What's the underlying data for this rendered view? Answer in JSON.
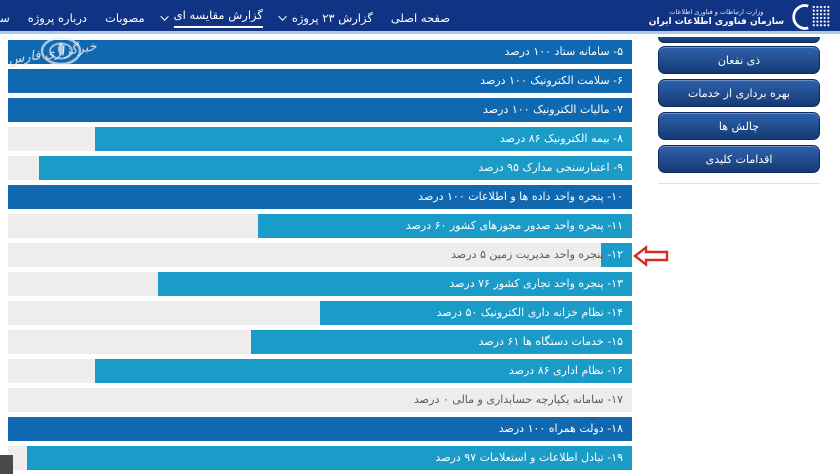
{
  "nav": {
    "items": [
      {
        "label": "صفحه اصلی",
        "caret": false,
        "active": false
      },
      {
        "label": "گزارش ۲۳ پروژه",
        "caret": true,
        "active": false
      },
      {
        "label": "گزارش مقایسه ای",
        "caret": true,
        "active": true
      },
      {
        "label": "مصوبات",
        "caret": false,
        "active": false
      },
      {
        "label": "درباره پروژه",
        "caret": false,
        "active": false
      },
      {
        "label": "سایر",
        "caret": false,
        "active": false
      }
    ],
    "logo": {
      "line1": "وزارت ارتباطات و فناوری اطلاعات",
      "line2": "سازمان فناوری اطلاعات ایران"
    }
  },
  "watermark": {
    "text": "خبرگزاری فارس"
  },
  "sidebar": {
    "buttons": [
      {
        "label": "ذی نفعان"
      },
      {
        "label": "بهره برداری از خدمات"
      },
      {
        "label": "چالش ها"
      },
      {
        "label": "اقدامات کلیدی"
      }
    ]
  },
  "chart_data": {
    "type": "bar",
    "orientation": "horizontal-rtl",
    "unit": "درصد",
    "xlim": [
      0,
      100
    ],
    "grid": false,
    "colors": {
      "bar_complete": "#0f68b0",
      "bar_partial": "#1b9cc8",
      "track": "#ededed",
      "arrow_red": "#d92b1e",
      "nav_bg": "#103384"
    },
    "rows": [
      {
        "label": "۵- سامانه ستاد ۱۰۰ درصد",
        "name": "سامانه ستاد",
        "value": 100,
        "color": "dark"
      },
      {
        "label": "۶- سلامت الکترونیک ۱۰۰ درصد",
        "name": "سلامت الکترونیک",
        "value": 100,
        "color": "dark"
      },
      {
        "label": "۷- مالیات الکترونیک ۱۰۰ درصد",
        "name": "مالیات الکترونیک",
        "value": 100,
        "color": "dark"
      },
      {
        "label": "۸- بیمه الکترونیک ۸۶ درصد",
        "name": "بیمه الکترونیک",
        "value": 86,
        "color": "light"
      },
      {
        "label": "۹- اعتبارسنجی مدارک ۹۵ درصد",
        "name": "اعتبارسنجی مدارک",
        "value": 95,
        "color": "light"
      },
      {
        "label": "۱۰- پنجره واحد داده ها و اطلاعات ۱۰۰ درصد",
        "name": "پنجره واحد داده ها و اطلاعات",
        "value": 100,
        "color": "dark"
      },
      {
        "label": "۱۱- پنجره واحد صدور مجوزهای کشور ۶۰ درصد",
        "name": "پنجره واحد صدور مجوزهای کشور",
        "value": 60,
        "color": "light"
      },
      {
        "label": "۱۲- پنجره واحد مدیریت زمین ۵ درصد",
        "name": "پنجره واحد مدیریت زمین",
        "value": 5,
        "color": "light",
        "label_on_bar": "۱۲-",
        "label_off_bar": "پنجره واحد مدیریت زمین ۵ درصد",
        "annotated": true
      },
      {
        "label": "۱۳- پنجره واحد تجاری کشور ۷۶ درصد",
        "name": "پنجره واحد تجاری کشور",
        "value": 76,
        "color": "light"
      },
      {
        "label": "۱۴- نظام خزانه داری الکترونیک ۵۰ درصد",
        "name": "نظام خزانه داری الکترونیک",
        "value": 50,
        "color": "light"
      },
      {
        "label": "۱۵- خدمات دستگاه ها ۶۱ درصد",
        "name": "خدمات دستگاه ها",
        "value": 61,
        "color": "light"
      },
      {
        "label": "۱۶- نظام اداری ۸۶ درصد",
        "name": "نظام اداری",
        "value": 86,
        "color": "light"
      },
      {
        "label": "۱۷- سامانه یکپارچه حسابداری و مالی ۰ درصد",
        "name": "سامانه یکپارچه حسابداری و مالی",
        "value": 0,
        "color": "none"
      },
      {
        "label": "۱۸- دولت همراه ۱۰۰ درصد",
        "name": "دولت همراه",
        "value": 100,
        "color": "dark"
      },
      {
        "label": "۱۹- تبادل اطلاعات و استعلامات ۹۷ درصد",
        "name": "تبادل اطلاعات و استعلامات",
        "value": 97,
        "color": "light"
      }
    ],
    "annotation": {
      "type": "red-arrow",
      "points_to": "۱۲- پنجره واحد مدیریت زمین ۵ درصد"
    }
  }
}
